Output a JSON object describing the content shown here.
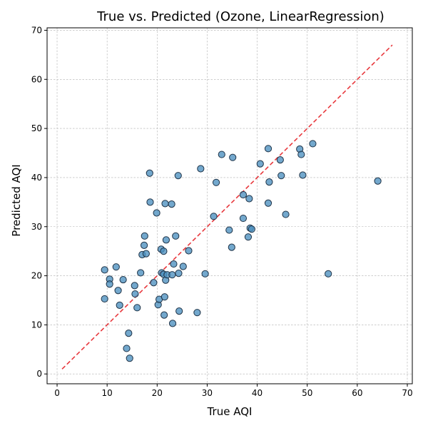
{
  "chart_data": {
    "type": "scatter",
    "title": "True vs. Predicted (Ozone, LinearRegression)",
    "xlabel": "True AQI",
    "ylabel": "Predicted AQI",
    "xlim": [
      -2,
      71
    ],
    "ylim": [
      -2,
      70.5
    ],
    "xticks": [
      0,
      10,
      20,
      30,
      40,
      50,
      60,
      70
    ],
    "yticks": [
      0,
      10,
      20,
      30,
      40,
      50,
      60,
      70
    ],
    "grid": true,
    "reference_line": {
      "x": [
        1,
        67
      ],
      "y": [
        1,
        67
      ],
      "color": "#e8383d",
      "style": "dashed"
    },
    "point_color": "#4c8fbf",
    "point_edge_color": "#1f3347",
    "points": [
      [
        9.5,
        21.2
      ],
      [
        9.5,
        15.3
      ],
      [
        10.5,
        19.3
      ],
      [
        10.5,
        18.3
      ],
      [
        11.8,
        21.8
      ],
      [
        12.2,
        17.0
      ],
      [
        12.5,
        14.0
      ],
      [
        13.2,
        19.2
      ],
      [
        13.9,
        5.2
      ],
      [
        14.3,
        8.3
      ],
      [
        14.5,
        3.2
      ],
      [
        15.5,
        18.0
      ],
      [
        15.6,
        16.3
      ],
      [
        16.0,
        13.5
      ],
      [
        16.7,
        20.6
      ],
      [
        17.0,
        24.3
      ],
      [
        17.4,
        26.2
      ],
      [
        17.5,
        28.1
      ],
      [
        17.8,
        24.5
      ],
      [
        18.5,
        40.9
      ],
      [
        18.6,
        35.0
      ],
      [
        19.3,
        18.6
      ],
      [
        19.9,
        32.8
      ],
      [
        20.2,
        14.1
      ],
      [
        20.4,
        15.2
      ],
      [
        20.8,
        25.4
      ],
      [
        20.9,
        20.6
      ],
      [
        21.3,
        25.0
      ],
      [
        21.3,
        20.3
      ],
      [
        21.4,
        12.0
      ],
      [
        21.5,
        15.7
      ],
      [
        21.6,
        34.7
      ],
      [
        21.7,
        19.1
      ],
      [
        21.8,
        27.3
      ],
      [
        22.0,
        20.2
      ],
      [
        22.9,
        34.6
      ],
      [
        23.0,
        20.2
      ],
      [
        23.1,
        10.3
      ],
      [
        23.3,
        22.4
      ],
      [
        23.7,
        28.1
      ],
      [
        24.2,
        40.4
      ],
      [
        24.3,
        20.5
      ],
      [
        24.4,
        12.8
      ],
      [
        25.2,
        21.9
      ],
      [
        26.3,
        25.1
      ],
      [
        28.0,
        12.5
      ],
      [
        28.7,
        41.8
      ],
      [
        29.6,
        20.4
      ],
      [
        31.3,
        32.1
      ],
      [
        31.8,
        39.0
      ],
      [
        32.9,
        44.7
      ],
      [
        34.4,
        29.3
      ],
      [
        34.9,
        25.8
      ],
      [
        35.1,
        44.1
      ],
      [
        37.2,
        31.7
      ],
      [
        37.2,
        36.5
      ],
      [
        38.2,
        27.9
      ],
      [
        38.4,
        35.7
      ],
      [
        38.6,
        29.7
      ],
      [
        38.9,
        29.5
      ],
      [
        40.6,
        42.8
      ],
      [
        42.2,
        45.9
      ],
      [
        42.2,
        34.8
      ],
      [
        42.4,
        39.1
      ],
      [
        44.6,
        43.6
      ],
      [
        44.8,
        40.4
      ],
      [
        45.7,
        32.5
      ],
      [
        48.5,
        45.8
      ],
      [
        48.8,
        44.7
      ],
      [
        49.1,
        40.5
      ],
      [
        51.1,
        46.9
      ],
      [
        54.2,
        20.4
      ],
      [
        64.1,
        39.3
      ]
    ]
  }
}
